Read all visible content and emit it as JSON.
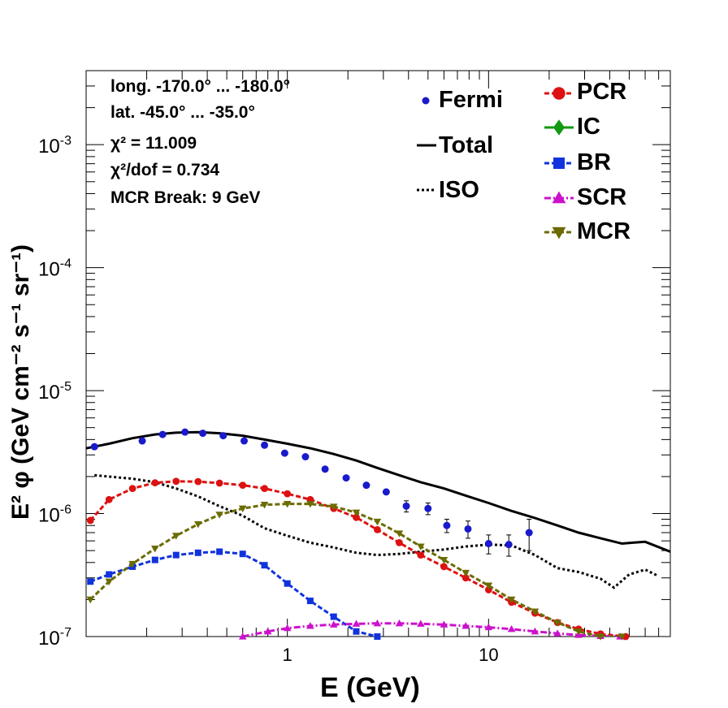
{
  "info": {
    "line1": "long. -170.0° ... -180.0°",
    "line2": "lat. -45.0° ... -35.0°",
    "line3": "χ² = 11.009",
    "line4": "χ²/dof = 0.734",
    "line5": "MCR Break:  9 GeV"
  },
  "legend": {
    "fermi": "Fermi",
    "total": "Total",
    "iso": "ISO",
    "pcr": "PCR",
    "ic": "IC",
    "br": "BR",
    "scr": "SCR",
    "mcr": "MCR"
  },
  "colors": {
    "fermi": "#1a1acc",
    "total": "#000000",
    "iso": "#000000",
    "pcr": "#dd1111",
    "ic": "#119911",
    "br": "#1133dd",
    "scr": "#cc11cc",
    "mcr": "#6b6b00"
  },
  "chart_data": {
    "type": "line",
    "xlabel": "E (GeV)",
    "ylabel": "E² φ (GeV cm⁻² s⁻¹ sr⁻¹)",
    "xscale": "log",
    "yscale": "log",
    "xlim": [
      0.1,
      80
    ],
    "ylim": [
      1e-07,
      0.004
    ],
    "x_ticks": [
      {
        "v": 1,
        "label": "1"
      },
      {
        "v": 10,
        "label": "10"
      }
    ],
    "y_ticks": [
      {
        "v": 1e-07,
        "base": "10",
        "exp": "-7"
      },
      {
        "v": 1e-06,
        "base": "10",
        "exp": "-6"
      },
      {
        "v": 1e-05,
        "base": "10",
        "exp": "-5"
      },
      {
        "v": 0.0001,
        "base": "10",
        "exp": "-4"
      },
      {
        "v": 0.001,
        "base": "10",
        "exp": "-3"
      }
    ],
    "fermi": {
      "x": [
        0.11,
        0.19,
        0.24,
        0.31,
        0.38,
        0.48,
        0.61,
        0.77,
        0.97,
        1.23,
        1.54,
        1.96,
        2.47,
        3.1,
        3.9,
        5,
        6.2,
        7.9,
        10,
        12.6,
        15.9,
        20,
        25,
        32,
        40,
        51,
        65
      ],
      "y": [
        3.5e-06,
        3.9e-06,
        4.4e-06,
        4.6e-06,
        4.5e-06,
        4.3e-06,
        3.9e-06,
        3.6e-06,
        3.1e-06,
        2.9e-06,
        2.3e-06,
        1.95e-06,
        1.7e-06,
        1.5e-06,
        1.15e-06,
        1.1e-06,
        8e-07,
        7.5e-07,
        5.7e-07,
        5.6e-07,
        7e-07,
        null,
        null,
        null,
        null,
        null,
        null
      ],
      "yerr": [
        0,
        0,
        0,
        0,
        0,
        0,
        0,
        0,
        0,
        0,
        0,
        0,
        0,
        0,
        1.2e-07,
        1.2e-07,
        1e-07,
        1.2e-07,
        1e-07,
        1.1e-07,
        2e-07,
        0,
        0,
        0,
        0,
        0,
        0
      ]
    },
    "series": [
      {
        "name": "Total",
        "style": "solid",
        "x": [
          0.1,
          0.13,
          0.17,
          0.22,
          0.28,
          0.36,
          0.46,
          0.6,
          0.77,
          1.0,
          1.3,
          1.7,
          2.2,
          2.8,
          3.6,
          4.6,
          6.0,
          7.7,
          10,
          13,
          17,
          22,
          28,
          36,
          46,
          52,
          60,
          80
        ],
        "y": [
          3.4e-06,
          3.7e-06,
          4.1e-06,
          4.4e-06,
          4.55e-06,
          4.6e-06,
          4.5e-06,
          4.3e-06,
          4e-06,
          3.7e-06,
          3.4e-06,
          3.05e-06,
          2.7e-06,
          2.35e-06,
          2.05e-06,
          1.8e-06,
          1.6e-06,
          1.4e-06,
          1.22e-06,
          1.05e-06,
          9.2e-07,
          8e-07,
          7e-07,
          6.3e-07,
          5.7e-07,
          5.8e-07,
          5.9e-07,
          4.9e-07
        ]
      },
      {
        "name": "ISO",
        "style": "dotted",
        "x": [
          0.11,
          0.13,
          0.17,
          0.22,
          0.28,
          0.36,
          0.46,
          0.6,
          0.77,
          1.0,
          1.3,
          1.7,
          2.2,
          2.8,
          3.6,
          4.6,
          6.0,
          7.7,
          10,
          13,
          17,
          22,
          28,
          36,
          42,
          50,
          60,
          70
        ],
        "y": [
          2.05e-06,
          2e-06,
          1.92e-06,
          1.8e-06,
          1.6e-06,
          1.38e-06,
          1.15e-06,
          9.6e-07,
          7.6e-07,
          6.6e-07,
          5.8e-07,
          5.3e-07,
          4.8e-07,
          4.6e-07,
          4.7e-07,
          4.9e-07,
          5.1e-07,
          5.4e-07,
          5.6e-07,
          5.5e-07,
          4.6e-07,
          3.6e-07,
          3.35e-07,
          2.95e-07,
          2.5e-07,
          3.2e-07,
          3.5e-07,
          3.1e-07
        ]
      },
      {
        "name": "PCR",
        "style": "dashed",
        "marker": "circle",
        "x": [
          0.105,
          0.13,
          0.17,
          0.22,
          0.28,
          0.36,
          0.46,
          0.6,
          0.77,
          1.0,
          1.3,
          1.7,
          2.2,
          2.8,
          3.6,
          4.6,
          6.0,
          7.7,
          10,
          13,
          17,
          22,
          28,
          36,
          48
        ],
        "y": [
          8.8e-07,
          1.3e-06,
          1.6e-06,
          1.78e-06,
          1.83e-06,
          1.82e-06,
          1.77e-06,
          1.7e-06,
          1.6e-06,
          1.45e-06,
          1.3e-06,
          1.1e-06,
          9.3e-07,
          7.4e-07,
          5.8e-07,
          4.6e-07,
          3.7e-07,
          3e-07,
          2.4e-07,
          1.9e-07,
          1.55e-07,
          1.3e-07,
          1.15e-07,
          1.05e-07,
          1e-07
        ]
      },
      {
        "name": "IC",
        "style": "solid",
        "marker": "diamond",
        "x": [],
        "y": []
      },
      {
        "name": "BR",
        "style": "dashed",
        "marker": "square",
        "x": [
          0.105,
          0.13,
          0.17,
          0.22,
          0.28,
          0.36,
          0.46,
          0.6,
          0.77,
          1.0,
          1.3,
          1.7,
          2.2,
          2.8
        ],
        "y": [
          2.8e-07,
          3.2e-07,
          3.7e-07,
          4.2e-07,
          4.6e-07,
          4.8e-07,
          4.9e-07,
          4.7e-07,
          3.8e-07,
          2.7e-07,
          1.95e-07,
          1.45e-07,
          1.1e-07,
          1e-07
        ]
      },
      {
        "name": "SCR",
        "style": "dashdot",
        "marker": "triangle-up",
        "x": [
          0.6,
          0.8,
          1.0,
          1.3,
          1.7,
          2.2,
          2.8,
          3.6,
          4.6,
          6.0,
          7.7,
          10,
          13,
          17,
          22,
          28,
          36,
          45
        ],
        "y": [
          1e-07,
          1.1e-07,
          1.17e-07,
          1.22e-07,
          1.25e-07,
          1.27e-07,
          1.28e-07,
          1.28e-07,
          1.27e-07,
          1.25e-07,
          1.22e-07,
          1.19e-07,
          1.15e-07,
          1.1e-07,
          1.06e-07,
          1.03e-07,
          1.01e-07,
          1e-07
        ]
      },
      {
        "name": "MCR",
        "style": "dashed",
        "marker": "triangle-down",
        "x": [
          0.105,
          0.13,
          0.17,
          0.22,
          0.28,
          0.36,
          0.46,
          0.6,
          0.77,
          1.0,
          1.3,
          1.7,
          2.2,
          2.8,
          3.6,
          4.6,
          6.0,
          7.7,
          10,
          13,
          17,
          22,
          28,
          36,
          46
        ],
        "y": [
          2e-07,
          2.8e-07,
          3.9e-07,
          5.2e-07,
          6.6e-07,
          8.2e-07,
          9.8e-07,
          1.1e-06,
          1.18e-06,
          1.2e-06,
          1.2e-06,
          1.14e-06,
          1.02e-06,
          8.6e-07,
          6.9e-07,
          5.4e-07,
          4.2e-07,
          3.3e-07,
          2.6e-07,
          2e-07,
          1.6e-07,
          1.3e-07,
          1.1e-07,
          1e-07,
          1e-07
        ]
      }
    ]
  }
}
